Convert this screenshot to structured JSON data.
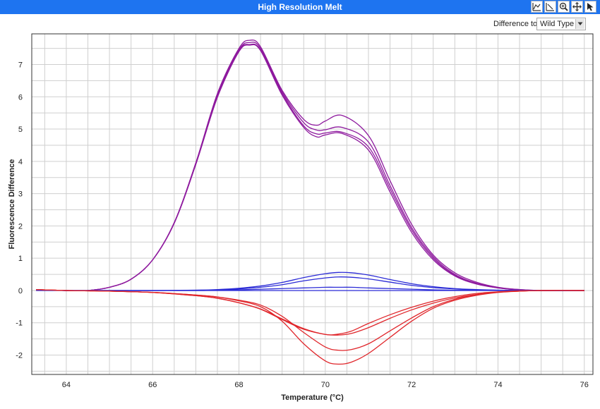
{
  "window": {
    "title": "High Resolution Melt"
  },
  "toolbar": {
    "icons": [
      "reset-zoom-icon",
      "axis-scale-icon",
      "zoom-icon",
      "pan-icon",
      "select-pointer-icon"
    ]
  },
  "difference": {
    "label": "Difference to",
    "selected": "Wild Type"
  },
  "colors": {
    "titlebar": "#1e74f0",
    "purple": "#8e1a9e",
    "blue": "#2b2bd6",
    "red": "#e0262b"
  },
  "chart_data": {
    "type": "line",
    "xlabel": "Temperature (°C)",
    "ylabel": "Fluorescence Difference",
    "xlim": [
      63.2,
      76.2
    ],
    "ylim": [
      -2.6,
      7.95
    ],
    "xticks": [
      64,
      66,
      68,
      70,
      72,
      74,
      76
    ],
    "yticks": [
      -2,
      -1,
      0,
      1,
      2,
      3,
      4,
      5,
      6,
      7
    ],
    "grid": true,
    "series": [
      {
        "color": "#8e1a9e",
        "x": [
          63.3,
          64,
          64.5,
          65,
          65.5,
          66,
          66.5,
          67,
          67.5,
          68,
          68.25,
          68.5,
          69,
          69.5,
          69.8,
          70,
          70.4,
          71,
          71.5,
          72,
          72.5,
          73,
          73.5,
          74,
          74.5,
          75,
          75.5,
          76
        ],
        "y": [
          0.02,
          0,
          0,
          0.1,
          0.35,
          0.95,
          2.1,
          3.95,
          6.1,
          7.5,
          7.75,
          7.55,
          6.2,
          5.3,
          5.12,
          5.25,
          5.42,
          4.8,
          3.4,
          2.05,
          1.1,
          0.55,
          0.26,
          0.1,
          0.03,
          0,
          0,
          0
        ]
      },
      {
        "color": "#8e1a9e",
        "x": [
          63.3,
          64,
          64.5,
          65,
          65.5,
          66,
          66.5,
          67,
          67.5,
          68,
          68.25,
          68.5,
          69,
          69.5,
          69.8,
          70,
          70.4,
          71,
          71.5,
          72,
          72.5,
          73,
          73.5,
          74,
          74.5,
          75,
          75.5,
          76
        ],
        "y": [
          0.02,
          0,
          0,
          0.1,
          0.35,
          0.95,
          2.1,
          3.95,
          6.05,
          7.45,
          7.68,
          7.5,
          6.15,
          5.2,
          4.97,
          4.98,
          5.05,
          4.6,
          3.25,
          1.95,
          1.05,
          0.5,
          0.23,
          0.09,
          0.03,
          0,
          0,
          0
        ]
      },
      {
        "color": "#8e1a9e",
        "x": [
          63.3,
          64,
          64.5,
          65,
          65.5,
          66,
          66.5,
          67,
          67.5,
          68,
          68.25,
          68.5,
          69,
          69.5,
          69.8,
          70,
          70.4,
          71,
          71.5,
          72,
          72.5,
          73,
          73.5,
          74,
          74.5,
          75,
          75.5,
          76
        ],
        "y": [
          0.02,
          0,
          0,
          0.1,
          0.35,
          0.95,
          2.1,
          3.92,
          6.0,
          7.42,
          7.62,
          7.45,
          6.1,
          5.1,
          4.85,
          4.88,
          4.9,
          4.45,
          3.15,
          1.88,
          1.0,
          0.47,
          0.21,
          0.08,
          0.02,
          0,
          0,
          0
        ]
      },
      {
        "color": "#8e1a9e",
        "x": [
          63.3,
          64,
          64.5,
          65,
          65.5,
          66,
          66.5,
          67,
          67.5,
          68,
          68.25,
          68.5,
          69,
          69.5,
          69.8,
          70,
          70.4,
          71,
          71.5,
          72,
          72.5,
          73,
          73.5,
          74,
          74.5,
          75,
          75.5,
          76
        ],
        "y": [
          0.02,
          0,
          0,
          0.1,
          0.35,
          0.95,
          2.08,
          3.9,
          5.98,
          7.4,
          7.6,
          7.43,
          6.05,
          5.05,
          4.76,
          4.82,
          4.86,
          4.35,
          3.05,
          1.8,
          0.95,
          0.45,
          0.2,
          0.08,
          0.02,
          0,
          0,
          0
        ]
      },
      {
        "color": "#2b2bd6",
        "x": [
          63.3,
          64,
          65,
          66,
          67,
          67.5,
          68,
          68.5,
          69,
          69.5,
          70,
          70.3,
          70.6,
          71,
          71.5,
          72,
          72.5,
          73,
          73.5,
          74,
          74.5,
          75,
          76
        ],
        "y": [
          0.02,
          0,
          0,
          0,
          0.01,
          0.03,
          0.07,
          0.14,
          0.25,
          0.4,
          0.52,
          0.56,
          0.55,
          0.48,
          0.34,
          0.21,
          0.12,
          0.06,
          0.03,
          0.01,
          0,
          0,
          0
        ]
      },
      {
        "color": "#2b2bd6",
        "x": [
          63.3,
          64,
          65,
          66,
          67,
          67.5,
          68,
          68.5,
          69,
          69.5,
          70,
          70.3,
          70.6,
          71,
          71.5,
          72,
          72.5,
          73,
          73.5,
          74,
          74.5,
          75,
          76
        ],
        "y": [
          0.02,
          0,
          0,
          0,
          0.01,
          0.02,
          0.05,
          0.1,
          0.18,
          0.3,
          0.39,
          0.42,
          0.41,
          0.36,
          0.26,
          0.16,
          0.09,
          0.05,
          0.02,
          0.01,
          0,
          0,
          0
        ]
      },
      {
        "color": "#2b2bd6",
        "x": [
          63.3,
          64,
          65,
          66,
          67,
          67.5,
          68,
          68.5,
          69,
          69.5,
          70,
          70.3,
          70.6,
          71,
          71.5,
          72,
          72.5,
          73,
          73.5,
          74,
          74.5,
          75,
          76
        ],
        "y": [
          0.02,
          0,
          0,
          0,
          0,
          0.01,
          0.02,
          0.04,
          0.06,
          0.08,
          0.1,
          0.1,
          0.1,
          0.08,
          0.06,
          0.04,
          0.02,
          0.01,
          0.01,
          0,
          0,
          0,
          0
        ]
      },
      {
        "color": "#2b2bd6",
        "x": [
          63.3,
          64,
          65,
          66,
          67,
          68,
          69,
          70,
          71,
          72,
          73,
          74,
          75,
          76
        ],
        "y": [
          0,
          0,
          0,
          0,
          0,
          0,
          0,
          0,
          0,
          0,
          0,
          0,
          0,
          0
        ]
      },
      {
        "color": "#e0262b",
        "x": [
          63.3,
          64,
          65,
          66,
          67,
          67.5,
          68,
          68.5,
          69,
          69.5,
          70,
          70.3,
          70.6,
          71,
          71.5,
          72,
          72.5,
          73,
          73.5,
          74,
          74.5,
          75,
          76
        ],
        "y": [
          0.03,
          0,
          -0.02,
          -0.06,
          -0.14,
          -0.2,
          -0.3,
          -0.45,
          -0.8,
          -1.3,
          -1.75,
          -1.85,
          -1.83,
          -1.65,
          -1.25,
          -0.85,
          -0.5,
          -0.27,
          -0.13,
          -0.05,
          -0.02,
          0,
          0
        ]
      },
      {
        "color": "#e0262b",
        "x": [
          63.3,
          64,
          65,
          66,
          67,
          67.5,
          68,
          68.5,
          69,
          69.5,
          70,
          70.3,
          70.6,
          71,
          71.5,
          72,
          72.5,
          73,
          73.5,
          74,
          74.5,
          75,
          76
        ],
        "y": [
          0.03,
          0,
          -0.02,
          -0.06,
          -0.14,
          -0.2,
          -0.32,
          -0.5,
          -0.95,
          -1.65,
          -2.18,
          -2.28,
          -2.22,
          -1.95,
          -1.45,
          -0.95,
          -0.55,
          -0.3,
          -0.15,
          -0.06,
          -0.02,
          0,
          0
        ]
      },
      {
        "color": "#e0262b",
        "x": [
          63.3,
          64,
          65,
          66,
          67,
          67.5,
          68,
          68.5,
          69,
          69.5,
          70,
          70.3,
          70.6,
          71,
          71.5,
          72,
          72.5,
          73,
          73.5,
          74,
          74.5,
          75,
          76
        ],
        "y": [
          0.03,
          0,
          -0.02,
          -0.06,
          -0.16,
          -0.24,
          -0.38,
          -0.57,
          -0.88,
          -1.18,
          -1.36,
          -1.35,
          -1.26,
          -1.02,
          -0.75,
          -0.52,
          -0.33,
          -0.19,
          -0.09,
          -0.04,
          -0.01,
          0,
          0
        ]
      },
      {
        "color": "#e0262b",
        "x": [
          63.3,
          64,
          65,
          66,
          67,
          67.5,
          68,
          68.5,
          69,
          69.5,
          70,
          70.3,
          70.6,
          71,
          71.5,
          72,
          72.5,
          73,
          73.5,
          74,
          74.5,
          75,
          76
        ],
        "y": [
          0.03,
          0,
          -0.02,
          -0.06,
          -0.16,
          -0.24,
          -0.38,
          -0.58,
          -0.9,
          -1.2,
          -1.36,
          -1.38,
          -1.33,
          -1.15,
          -0.86,
          -0.6,
          -0.39,
          -0.23,
          -0.12,
          -0.05,
          -0.02,
          0,
          0
        ]
      }
    ]
  }
}
